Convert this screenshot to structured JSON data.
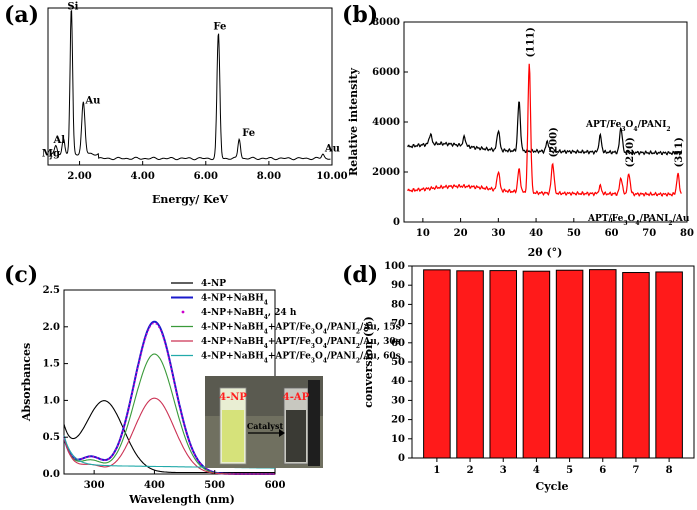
{
  "panels": {
    "a": "(a)",
    "b": "(b)",
    "c": "(c)",
    "d": "(d)"
  },
  "chart_data": [
    {
      "panel": "a",
      "type": "line",
      "xlabel": "Energy/ KeV",
      "ylabel": "",
      "xlim": [
        1.0,
        10.0
      ],
      "xticks": [
        "2.00",
        "4.00",
        "6.00",
        "8.00",
        "10.00"
      ],
      "y_ticks_shown": false,
      "peaks": [
        {
          "label": "Mg",
          "x": 1.25,
          "y": 0.05
        },
        {
          "label": "Al",
          "x": 1.49,
          "y": 0.1
        },
        {
          "label": "Si",
          "x": 1.74,
          "y": 0.95
        },
        {
          "label": "Au",
          "x": 2.12,
          "y": 0.34
        },
        {
          "label": "Fe",
          "x": 6.4,
          "y": 0.82
        },
        {
          "label": "Fe",
          "x": 7.06,
          "y": 0.13
        },
        {
          "label": "Au",
          "x": 9.71,
          "y": 0.03
        }
      ]
    },
    {
      "panel": "b",
      "type": "line",
      "xlabel": "2θ (°)",
      "ylabel": "Relative intensity",
      "xlim": [
        5,
        80
      ],
      "ylim": [
        0,
        8000
      ],
      "xticks": [
        10,
        20,
        30,
        40,
        50,
        60,
        70,
        80
      ],
      "yticks": [
        0,
        2000,
        4000,
        6000,
        8000
      ],
      "series": [
        {
          "name": "APT/Fe3O4/PANI2",
          "color": "#000000",
          "baseline": 2900,
          "peaks": [
            [
              12,
              3300
            ],
            [
              21,
              3250
            ],
            [
              30,
              3700
            ],
            [
              35.5,
              4850
            ],
            [
              43,
              3300
            ],
            [
              57,
              3550
            ],
            [
              62.5,
              3900
            ]
          ]
        },
        {
          "name": "APT/Fe3O4/PANI2/Au",
          "color": "#ff0000",
          "baseline": 1200,
          "peaks": [
            [
              30,
              1950
            ],
            [
              35.5,
              2100
            ],
            [
              38.2,
              6350
            ],
            [
              44.4,
              2400
            ],
            [
              57,
              1500
            ],
            [
              62.5,
              1850
            ],
            [
              64.6,
              2000
            ],
            [
              77.6,
              2000
            ]
          ]
        }
      ],
      "annotations": [
        "(111)",
        "(200)",
        "(220)",
        "(311)"
      ]
    },
    {
      "panel": "c",
      "type": "line",
      "xlabel": "Wavelength (nm)",
      "ylabel": "Absorbances",
      "xlim": [
        250,
        600
      ],
      "ylim": [
        0,
        2.5
      ],
      "xticks": [
        300,
        400,
        500,
        600
      ],
      "yticks": [
        "0.0",
        "0.5",
        "1.0",
        "1.5",
        "2.0",
        "2.5"
      ],
      "series": [
        {
          "name": "4-NP",
          "color": "#000000",
          "peak_x": 317,
          "peak_y": 0.97
        },
        {
          "name": "4-NP+NaBH4",
          "color": "#1a1acc",
          "peak_x": 400,
          "peak_y": 2.07
        },
        {
          "name": "4-NP+NaBH4, 24 h",
          "color": "#cc00cc",
          "peak_x": 400,
          "peak_y": 2.05,
          "dotted": true
        },
        {
          "name": "4-NP+NaBH4+APT/Fe3O4/PANI2/Au, 15s",
          "color": "#3a9a3a",
          "peak_x": 400,
          "peak_y": 1.63
        },
        {
          "name": "4-NP+NaBH4+APT/Fe3O4/PANI2/Au, 30s",
          "color": "#cc3355",
          "peak_x": 400,
          "peak_y": 1.03
        },
        {
          "name": "4-NP+NaBH4+APT/Fe3O4/PANI2/Au, 60s",
          "color": "#22aaaa",
          "peak_x": 400,
          "peak_y": 0.1
        }
      ],
      "inset": {
        "left_label": "4-NP",
        "arrow_label": "Catalyst",
        "right_label": "4-AP"
      }
    },
    {
      "panel": "d",
      "type": "bar",
      "xlabel": "Cycle",
      "ylabel": "conversion (%)",
      "ylim": [
        0,
        100
      ],
      "yticks": [
        0,
        10,
        20,
        30,
        40,
        50,
        60,
        70,
        80,
        90,
        100
      ],
      "categories": [
        "1",
        "2",
        "3",
        "4",
        "5",
        "6",
        "7",
        "8"
      ],
      "values": [
        98,
        97.5,
        97.6,
        97.3,
        97.8,
        98.1,
        96.6,
        96.9
      ],
      "color": "#ff1a1a"
    }
  ]
}
